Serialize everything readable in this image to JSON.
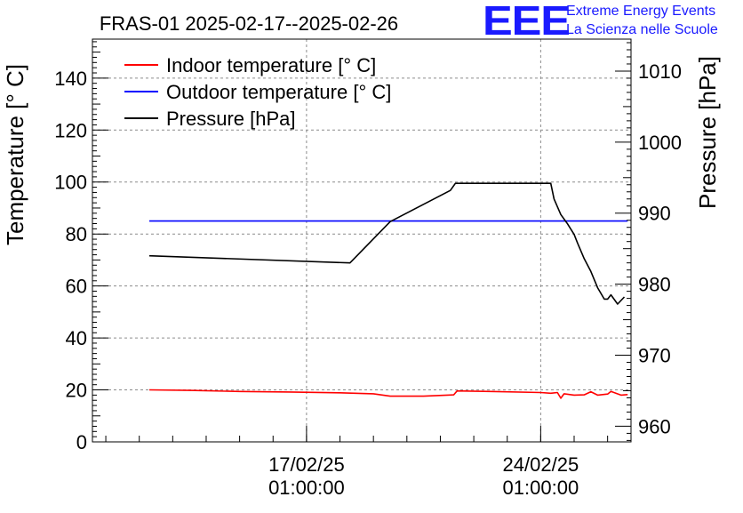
{
  "title": "FRAS-01 2025-02-17--2025-02-26",
  "logo": {
    "mark": "EEE",
    "line1": "Extreme Energy Events",
    "line2": "La Scienza nelle Scuole",
    "color": "#1a1aff"
  },
  "chart_data": {
    "type": "line",
    "title": "FRAS-01 2025-02-17--2025-02-26",
    "ylabel": "Temperature [° C]",
    "y2label": "Pressure [hPa]",
    "ylim": [
      0,
      155
    ],
    "y2lim": [
      957.8,
      1014.5
    ],
    "yticks": [
      0,
      20,
      40,
      60,
      80,
      100,
      120,
      140
    ],
    "y2ticks": [
      960,
      970,
      980,
      990,
      1000,
      1010
    ],
    "xlim_days": [
      -6.4,
      9.7
    ],
    "xticks": [
      {
        "day": 0,
        "date": "17/02/25",
        "time": "01:00:00"
      },
      {
        "day": 7,
        "date": "24/02/25",
        "time": "01:00:00"
      }
    ],
    "grid": true,
    "legend_position": "top-left",
    "series": [
      {
        "name": "Indoor temperature [° C]",
        "axis": "left",
        "color": "#ff0000",
        "x": [
          -4.7,
          -3.5,
          -2.0,
          -0.5,
          1.0,
          2.0,
          2.5,
          3.5,
          4.4,
          4.5,
          5.5,
          7.0,
          7.3,
          7.5,
          7.6,
          7.7,
          8.0,
          8.3,
          8.5,
          8.7,
          9.0,
          9.1,
          9.4,
          9.6
        ],
        "y": [
          20.0,
          19.8,
          19.4,
          19.2,
          18.9,
          18.5,
          17.6,
          17.6,
          18.1,
          19.6,
          19.4,
          19.0,
          18.7,
          19.0,
          16.8,
          18.5,
          18.0,
          18.1,
          19.3,
          18.0,
          18.4,
          19.4,
          18.0,
          18.2
        ]
      },
      {
        "name": "Outdoor temperature [° C]",
        "axis": "left",
        "color": "#0000ff",
        "x": [
          -4.7,
          9.6
        ],
        "y": [
          85.0,
          85.0
        ]
      },
      {
        "name": "Pressure [hPa]",
        "axis": "right",
        "color": "#000000",
        "x": [
          -4.7,
          1.3,
          2.5,
          4.3,
          4.45,
          7.3,
          7.4,
          7.6,
          7.8,
          8.0,
          8.1,
          8.3,
          8.5,
          8.7,
          8.9,
          9.0,
          9.1,
          9.3,
          9.5
        ],
        "y": [
          984.0,
          983.0,
          988.8,
          993.2,
          994.2,
          994.2,
          992.0,
          989.8,
          988.5,
          987.0,
          985.8,
          983.6,
          981.8,
          979.5,
          977.9,
          977.9,
          978.5,
          977.2,
          978.2
        ]
      }
    ]
  }
}
